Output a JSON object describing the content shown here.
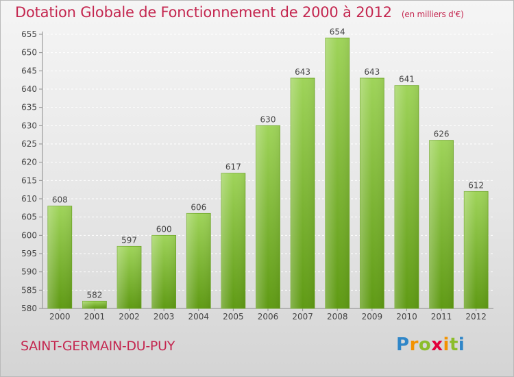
{
  "header": {
    "title": "Dotation Globale de Fonctionnement de 2000 à 2012",
    "unit": "(en milliers d'€)"
  },
  "footer": {
    "commune": "SAINT-GERMAIN-DU-PUY",
    "logo": [
      "P",
      "r",
      "o",
      "x",
      "i",
      "t",
      "i"
    ]
  },
  "colors": {
    "bar_top": "#9fd45a",
    "bar_bottom": "#5f9a14",
    "title": "#c4264f",
    "logo": [
      "#2f86c8",
      "#f39200",
      "#8cbd2a",
      "#e2003b"
    ]
  },
  "chart_data": {
    "type": "bar",
    "title": "Dotation Globale de Fonctionnement de 2000 à 2012",
    "xlabel": "",
    "ylabel": "",
    "categories": [
      "2000",
      "2001",
      "2002",
      "2003",
      "2004",
      "2005",
      "2006",
      "2007",
      "2008",
      "2009",
      "2010",
      "2011",
      "2012"
    ],
    "values": [
      608,
      582,
      597,
      600,
      606,
      617,
      630,
      643,
      654,
      643,
      641,
      626,
      612
    ],
    "ylim": [
      580,
      655
    ],
    "yticks": [
      580,
      585,
      590,
      595,
      600,
      605,
      610,
      615,
      620,
      625,
      630,
      635,
      640,
      645,
      650,
      655
    ],
    "grid": true,
    "data_labels": true
  }
}
